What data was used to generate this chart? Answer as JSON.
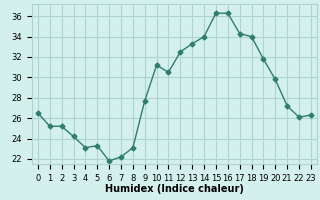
{
  "x": [
    0,
    1,
    2,
    3,
    4,
    5,
    6,
    7,
    8,
    9,
    10,
    11,
    12,
    13,
    14,
    15,
    16,
    17,
    18,
    19,
    20,
    21,
    22,
    23
  ],
  "y": [
    26.5,
    25.2,
    25.2,
    24.2,
    23.1,
    23.3,
    21.8,
    22.2,
    23.1,
    27.7,
    31.2,
    30.5,
    32.5,
    33.3,
    34.0,
    36.3,
    36.3,
    34.3,
    34.0,
    31.8,
    29.8,
    27.2,
    26.1,
    26.3
  ],
  "xlabel": "Humidex (Indice chaleur)",
  "xlim": [
    -0.5,
    23.5
  ],
  "ylim": [
    21.5,
    37.2
  ],
  "yticks": [
    22,
    24,
    26,
    28,
    30,
    32,
    34,
    36
  ],
  "xticks": [
    0,
    1,
    2,
    3,
    4,
    5,
    6,
    7,
    8,
    9,
    10,
    11,
    12,
    13,
    14,
    15,
    16,
    17,
    18,
    19,
    20,
    21,
    22,
    23
  ],
  "line_color": "#2e7d6e",
  "marker": "D",
  "marker_size": 2.5,
  "bg_color": "#d4f0ec",
  "grid_color": "#aed4ce",
  "axis_fontsize": 7,
  "tick_fontsize": 6
}
